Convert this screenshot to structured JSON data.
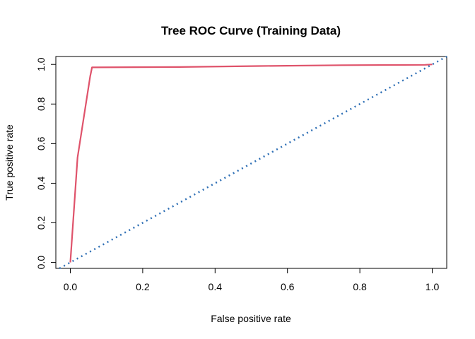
{
  "chart_data": {
    "type": "line",
    "title": "Tree ROC Curve (Training Data)",
    "xlabel": "False positive rate",
    "ylabel": "True positive rate",
    "xlim": [
      -0.04,
      1.04
    ],
    "ylim": [
      -0.03,
      1.04
    ],
    "x_ticks": [
      0.0,
      0.2,
      0.4,
      0.6,
      0.8,
      1.0
    ],
    "x_tick_labels": [
      "0.0",
      "0.2",
      "0.4",
      "0.6",
      "0.8",
      "1.0"
    ],
    "y_ticks": [
      0.0,
      0.2,
      0.4,
      0.6,
      0.8,
      1.0
    ],
    "y_tick_labels": [
      "0.0",
      "0.2",
      "0.4",
      "0.6",
      "0.8",
      "1.0"
    ],
    "grid": false,
    "legend": "none",
    "series": [
      {
        "style": "solid",
        "color": "#DF536B",
        "x": [
          0.0,
          0.02,
          0.055,
          0.06,
          0.3,
          0.52,
          0.75,
          0.98,
          1.0
        ],
        "y": [
          0.0,
          0.53,
          0.94,
          0.985,
          0.987,
          0.992,
          0.996,
          0.998,
          1.0
        ]
      },
      {
        "style": "dotted",
        "color": "#2E6FB5",
        "x": [
          -0.03,
          1.04
        ],
        "y": [
          -0.03,
          1.04
        ]
      }
    ]
  }
}
